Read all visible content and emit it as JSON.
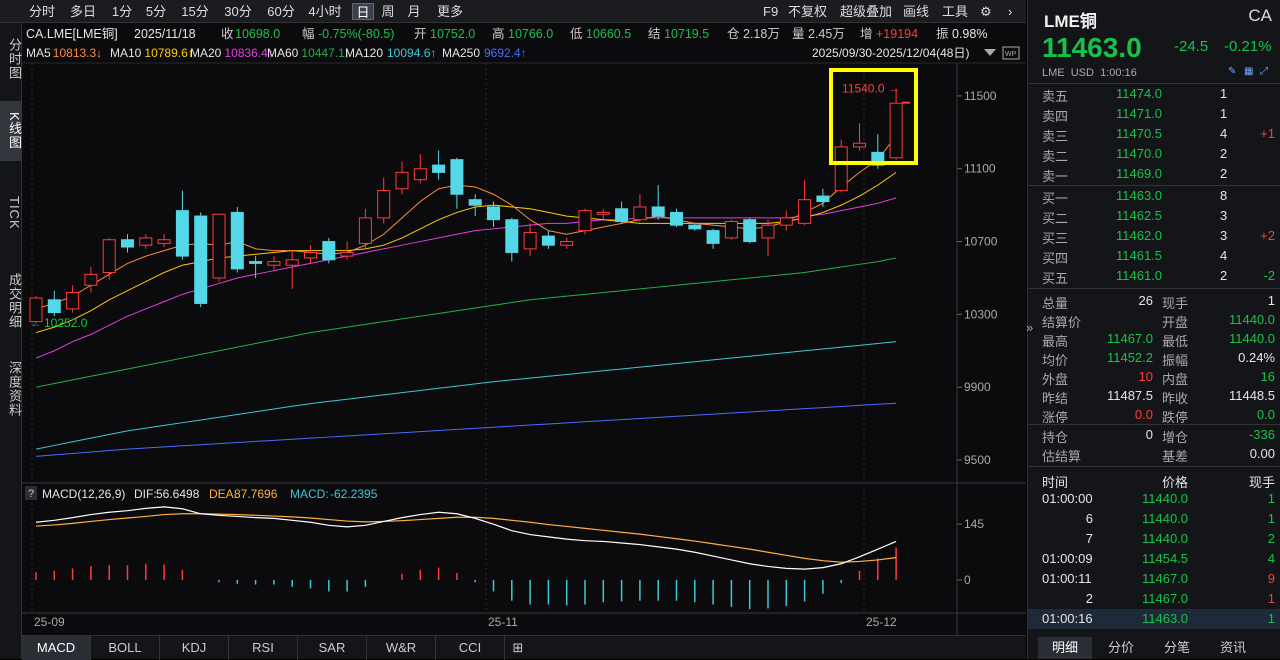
{
  "topbar": {
    "timeframes": [
      "分时",
      "多日",
      "1分",
      "5分",
      "15分",
      "30分",
      "60分",
      "4小时",
      "日",
      "周",
      "月",
      "更多"
    ],
    "selected_timeframe": "日",
    "tools": [
      "F9",
      "不复权",
      "超级叠加",
      "画线",
      "工具"
    ]
  },
  "leftnav": [
    "分时图",
    "K线图",
    "TICK",
    "成交明细",
    "深度资料"
  ],
  "leftnav_selected": "K线图",
  "info": {
    "symbol": "CA.LME[LME铜]",
    "date": "2025/11/18",
    "close_label": "收",
    "close": "10698.0",
    "change_label": "幅",
    "change": "-0.75%(-80.5)",
    "open_label": "开",
    "open": "10752.0",
    "high_label": "高",
    "high": "10766.0",
    "low_label": "低",
    "low": "10660.5",
    "settle_label": "结",
    "settle": "10719.5",
    "oi_label": "仓",
    "oi": "2.18万",
    "vol_label": "量",
    "vol": "2.45万",
    "inc_label": "增",
    "inc": "+19194",
    "amp_label": "振",
    "amp": "0.98%"
  },
  "ma": [
    {
      "label": "MA5",
      "value": "10813.3↓",
      "color": "#ffffff"
    },
    {
      "label": "MA10",
      "value": "10789.6↑",
      "color": "#ffcc00"
    },
    {
      "label": "MA20",
      "value": "10836.4↑",
      "color": "#e040e0"
    },
    {
      "label": "MA60",
      "value": "10447.1↑",
      "color": "#22b04a"
    },
    {
      "label": "MA120",
      "value": "10094.6↑",
      "color": "#3ec7d6"
    },
    {
      "label": "MA250",
      "value": "9692.4↑",
      "color": "#4a6cff"
    }
  ],
  "range_text": "2025/09/30-2025/12/04(48日)",
  "price_axis": [
    "11500",
    "11100",
    "10700",
    "10300",
    "9900",
    "9500"
  ],
  "high_marker": "11540.0",
  "low_marker": "10252.0",
  "date_labels": [
    "25-09",
    "25-11",
    "25-12"
  ],
  "macd": {
    "title": "MACD(12,26,9)",
    "dif_label": "DIF:",
    "dif": "56.6498",
    "dea_label": "DEA:",
    "dea": "87.7696",
    "macd_label": "MACD:",
    "macd": "-62.2395",
    "axis": [
      "145",
      "0"
    ]
  },
  "chart_data": {
    "type": "candlestick",
    "ylim": [
      9500,
      11560
    ],
    "candles": [
      {
        "o": 10260,
        "c": 10390,
        "h": 10400,
        "l": 10250
      },
      {
        "o": 10380,
        "c": 10310,
        "h": 10430,
        "l": 10290
      },
      {
        "o": 10330,
        "c": 10420,
        "h": 10460,
        "l": 10310
      },
      {
        "o": 10460,
        "c": 10520,
        "h": 10560,
        "l": 10420
      },
      {
        "o": 10530,
        "c": 10710,
        "h": 10720,
        "l": 10490
      },
      {
        "o": 10710,
        "c": 10670,
        "h": 10740,
        "l": 10640
      },
      {
        "o": 10680,
        "c": 10720,
        "h": 10740,
        "l": 10660
      },
      {
        "o": 10690,
        "c": 10710,
        "h": 10740,
        "l": 10670
      },
      {
        "o": 10870,
        "c": 10620,
        "h": 10980,
        "l": 10600
      },
      {
        "o": 10840,
        "c": 10360,
        "h": 10860,
        "l": 10340
      },
      {
        "o": 10500,
        "c": 10850,
        "h": 10850,
        "l": 10480
      },
      {
        "o": 10860,
        "c": 10550,
        "h": 10890,
        "l": 10530
      },
      {
        "o": 10590,
        "c": 10580,
        "h": 10620,
        "l": 10500
      },
      {
        "o": 10570,
        "c": 10590,
        "h": 10620,
        "l": 10540
      },
      {
        "o": 10570,
        "c": 10600,
        "h": 10650,
        "l": 10440
      },
      {
        "o": 10610,
        "c": 10640,
        "h": 10680,
        "l": 10580
      },
      {
        "o": 10700,
        "c": 10600,
        "h": 10720,
        "l": 10580
      },
      {
        "o": 10620,
        "c": 10640,
        "h": 10700,
        "l": 10600
      },
      {
        "o": 10690,
        "c": 10830,
        "h": 10880,
        "l": 10660
      },
      {
        "o": 10830,
        "c": 10980,
        "h": 11050,
        "l": 10800
      },
      {
        "o": 10990,
        "c": 11080,
        "h": 11140,
        "l": 10960
      },
      {
        "o": 11040,
        "c": 11100,
        "h": 11180,
        "l": 11020
      },
      {
        "o": 11120,
        "c": 11080,
        "h": 11200,
        "l": 11040
      },
      {
        "o": 11150,
        "c": 10960,
        "h": 11160,
        "l": 10880
      },
      {
        "o": 10930,
        "c": 10900,
        "h": 10960,
        "l": 10840
      },
      {
        "o": 10890,
        "c": 10820,
        "h": 10920,
        "l": 10780
      },
      {
        "o": 10820,
        "c": 10640,
        "h": 10830,
        "l": 10590
      },
      {
        "o": 10660,
        "c": 10750,
        "h": 10800,
        "l": 10620
      },
      {
        "o": 10730,
        "c": 10680,
        "h": 10760,
        "l": 10660
      },
      {
        "o": 10680,
        "c": 10700,
        "h": 10720,
        "l": 10660
      },
      {
        "o": 10760,
        "c": 10870,
        "h": 10880,
        "l": 10740
      },
      {
        "o": 10850,
        "c": 10860,
        "h": 10880,
        "l": 10820
      },
      {
        "o": 10880,
        "c": 10810,
        "h": 10920,
        "l": 10800
      },
      {
        "o": 10820,
        "c": 10890,
        "h": 10960,
        "l": 10810
      },
      {
        "o": 10890,
        "c": 10840,
        "h": 11010,
        "l": 10820
      },
      {
        "o": 10860,
        "c": 10790,
        "h": 10880,
        "l": 10780
      },
      {
        "o": 10790,
        "c": 10770,
        "h": 10800,
        "l": 10760
      },
      {
        "o": 10760,
        "c": 10690,
        "h": 10770,
        "l": 10660
      },
      {
        "o": 10720,
        "c": 10810,
        "h": 10820,
        "l": 10710
      },
      {
        "o": 10820,
        "c": 10700,
        "h": 10830,
        "l": 10690
      },
      {
        "o": 10720,
        "c": 10790,
        "h": 10820,
        "l": 10620
      },
      {
        "o": 10790,
        "c": 10830,
        "h": 10870,
        "l": 10760
      },
      {
        "o": 10800,
        "c": 10930,
        "h": 11040,
        "l": 10790
      },
      {
        "o": 10950,
        "c": 10920,
        "h": 10990,
        "l": 10890
      },
      {
        "o": 10980,
        "c": 11220,
        "h": 11260,
        "l": 10970
      },
      {
        "o": 11220,
        "c": 11240,
        "h": 11350,
        "l": 11200
      },
      {
        "o": 11190,
        "c": 11120,
        "h": 11290,
        "l": 11100
      },
      {
        "o": 11160,
        "c": 11460,
        "h": 11540,
        "l": 11150
      }
    ],
    "ma5": [
      10330,
      10360,
      10400,
      10460,
      10520,
      10580,
      10620,
      10650,
      10680,
      10690,
      10680,
      10700,
      10660,
      10650,
      10650,
      10640,
      10630,
      10640,
      10680,
      10740,
      10830,
      10920,
      10990,
      11010,
      11000,
      10960,
      10900,
      10820,
      10760,
      10740,
      10760,
      10780,
      10800,
      10820,
      10840,
      10820,
      10800,
      10790,
      10780,
      10770,
      10780,
      10810,
      10860,
      10910,
      11000,
      11080,
      11150,
      11280
    ],
    "ma10": [
      10200,
      10230,
      10270,
      10320,
      10380,
      10430,
      10480,
      10530,
      10570,
      10590,
      10610,
      10620,
      10630,
      10640,
      10650,
      10650,
      10650,
      10650,
      10660,
      10680,
      10720,
      10770,
      10820,
      10860,
      10890,
      10900,
      10890,
      10880,
      10860,
      10840,
      10830,
      10820,
      10810,
      10800,
      10800,
      10800,
      10800,
      10800,
      10800,
      10800,
      10800,
      10810,
      10830,
      10860,
      10900,
      10950,
      11010,
      11080
    ],
    "ma20": [
      10060,
      10100,
      10150,
      10190,
      10240,
      10290,
      10330,
      10370,
      10410,
      10440,
      10470,
      10500,
      10520,
      10540,
      10560,
      10580,
      10600,
      10620,
      10640,
      10660,
      10680,
      10700,
      10720,
      10740,
      10760,
      10770,
      10780,
      10790,
      10800,
      10800,
      10810,
      10820,
      10820,
      10830,
      10830,
      10830,
      10830,
      10830,
      10830,
      10830,
      10830,
      10830,
      10840,
      10850,
      10870,
      10890,
      10910,
      10940
    ],
    "ma60": [
      9900,
      9920,
      9940,
      9960,
      9980,
      10000,
      10020,
      10040,
      10060,
      10080,
      10100,
      10120,
      10140,
      10160,
      10180,
      10200,
      10215,
      10230,
      10245,
      10260,
      10275,
      10290,
      10305,
      10320,
      10335,
      10350,
      10365,
      10380,
      10390,
      10400,
      10410,
      10420,
      10430,
      10440,
      10450,
      10460,
      10470,
      10480,
      10490,
      10500,
      10510,
      10520,
      10530,
      10545,
      10560,
      10575,
      10590,
      10610
    ],
    "ma120": [
      9560,
      9580,
      9600,
      9620,
      9640,
      9660,
      9675,
      9690,
      9705,
      9720,
      9735,
      9750,
      9765,
      9780,
      9795,
      9810,
      9822,
      9834,
      9846,
      9858,
      9870,
      9882,
      9894,
      9906,
      9918,
      9930,
      9940,
      9950,
      9960,
      9970,
      9980,
      9990,
      10000,
      10010,
      10020,
      10030,
      10040,
      10050,
      10060,
      10070,
      10080,
      10090,
      10100,
      10110,
      10120,
      10130,
      10140,
      10150
    ],
    "ma250": [
      9520,
      9528,
      9536,
      9544,
      9552,
      9560,
      9566,
      9572,
      9578,
      9584,
      9590,
      9596,
      9602,
      9608,
      9614,
      9620,
      9626,
      9632,
      9638,
      9644,
      9650,
      9656,
      9662,
      9668,
      9674,
      9680,
      9686,
      9692,
      9698,
      9704,
      9710,
      9716,
      9722,
      9728,
      9734,
      9740,
      9746,
      9752,
      9758,
      9764,
      9770,
      9776,
      9782,
      9788,
      9794,
      9800,
      9806,
      9812
    ],
    "macd_ylim": [
      -60,
      200
    ],
    "dif": [
      150,
      155,
      162,
      170,
      176,
      180,
      186,
      190,
      185,
      172,
      168,
      165,
      162,
      160,
      155,
      150,
      142,
      138,
      142,
      152,
      162,
      170,
      176,
      172,
      160,
      145,
      128,
      118,
      112,
      106,
      102,
      100,
      96,
      92,
      86,
      80,
      72,
      62,
      52,
      42,
      35,
      30,
      28,
      32,
      42,
      60,
      80,
      100
    ],
    "dea": [
      140,
      143,
      147,
      152,
      157,
      161,
      165,
      170,
      172,
      172,
      171,
      170,
      168,
      166,
      164,
      161,
      157,
      153,
      151,
      152,
      154,
      157,
      160,
      163,
      163,
      160,
      155,
      150,
      144,
      139,
      134,
      129,
      124,
      119,
      113,
      107,
      101,
      94,
      87,
      80,
      72,
      64,
      56,
      50,
      46,
      48,
      52,
      58
    ],
    "macd_bars": [
      20,
      24,
      30,
      36,
      38,
      38,
      42,
      40,
      26,
      0,
      -6,
      -10,
      -12,
      -12,
      -18,
      -22,
      -30,
      -30,
      -18,
      0,
      16,
      26,
      32,
      18,
      -6,
      -30,
      -54,
      -64,
      -64,
      -66,
      -64,
      -58,
      -56,
      -54,
      -54,
      -54,
      -58,
      -64,
      -70,
      -76,
      -74,
      -68,
      -56,
      -36,
      -8,
      24,
      56,
      84
    ]
  },
  "right": {
    "title": "LME铜",
    "code": "CA",
    "last": "11463.0",
    "change": "-24.5",
    "pct": "-0.21%",
    "sub": "LME  USD  1:00:16",
    "asks": [
      {
        "label": "卖五",
        "price": "11474.0",
        "vol": "1",
        "chg": ""
      },
      {
        "label": "卖四",
        "price": "11471.0",
        "vol": "1",
        "chg": ""
      },
      {
        "label": "卖三",
        "price": "11470.5",
        "vol": "4",
        "chg": "+1"
      },
      {
        "label": "卖二",
        "price": "11470.0",
        "vol": "2",
        "chg": ""
      },
      {
        "label": "卖一",
        "price": "11469.0",
        "vol": "2",
        "chg": ""
      }
    ],
    "bids": [
      {
        "label": "买一",
        "price": "11463.0",
        "vol": "8",
        "chg": ""
      },
      {
        "label": "买二",
        "price": "11462.5",
        "vol": "3",
        "chg": ""
      },
      {
        "label": "买三",
        "price": "11462.0",
        "vol": "3",
        "chg": "+2"
      },
      {
        "label": "买四",
        "price": "11461.5",
        "vol": "4",
        "chg": ""
      },
      {
        "label": "买五",
        "price": "11461.0",
        "vol": "2",
        "chg": "-2"
      }
    ],
    "stats": [
      {
        "l1": "总量",
        "v1": "26",
        "c1": "white",
        "l2": "现手",
        "v2": "1",
        "c2": "white"
      },
      {
        "l1": "结算价",
        "v1": "",
        "c1": "white",
        "l2": "开盘",
        "v2": "11440.0",
        "c2": "green"
      },
      {
        "l1": "最高",
        "v1": "11467.0",
        "c1": "green",
        "l2": "最低",
        "v2": "11440.0",
        "c2": "green"
      },
      {
        "l1": "均价",
        "v1": "11452.2",
        "c1": "green",
        "l2": "振幅",
        "v2": "0.24%",
        "c2": "white"
      },
      {
        "l1": "外盘",
        "v1": "10",
        "c1": "red",
        "l2": "内盘",
        "v2": "16",
        "c2": "green"
      },
      {
        "l1": "昨结",
        "v1": "11487.5",
        "c1": "white",
        "l2": "昨收",
        "v2": "11448.5",
        "c2": "white"
      },
      {
        "l1": "涨停",
        "v1": "0.0",
        "c1": "red",
        "l2": "跌停",
        "v2": "0.0",
        "c2": "green"
      }
    ],
    "stats2": [
      {
        "l1": "持仓",
        "v1": "0",
        "c1": "white",
        "l2": "增仓",
        "v2": "-336",
        "c2": "green"
      },
      {
        "l1": "估结算",
        "v1": "",
        "c1": "white",
        "l2": "基差",
        "v2": "0.00",
        "c2": "white"
      }
    ],
    "ticks_header": {
      "time": "时间",
      "price": "价格",
      "vol": "现手"
    },
    "ticks": [
      {
        "time": "01:00:00",
        "price": "11440.0",
        "vol": "1",
        "vc": "green"
      },
      {
        "time": "6",
        "price": "11440.0",
        "vol": "1",
        "vc": "green"
      },
      {
        "time": "7",
        "price": "11440.0",
        "vol": "2",
        "vc": "green"
      },
      {
        "time": "01:00:09",
        "price": "11454.5",
        "vol": "4",
        "vc": "green"
      },
      {
        "time": "01:00:11",
        "price": "11467.0",
        "vol": "9",
        "vc": "red"
      },
      {
        "time": "2",
        "price": "11467.0",
        "vol": "1",
        "vc": "red"
      },
      {
        "time": "01:00:16",
        "price": "11463.0",
        "vol": "1",
        "vc": "green"
      }
    ],
    "bottom_tabs": [
      "明细",
      "分价",
      "分笔",
      "资讯"
    ]
  },
  "bottom_tabs": [
    "MACD",
    "BOLL",
    "KDJ",
    "RSI",
    "SAR",
    "W&R",
    "CCI"
  ]
}
